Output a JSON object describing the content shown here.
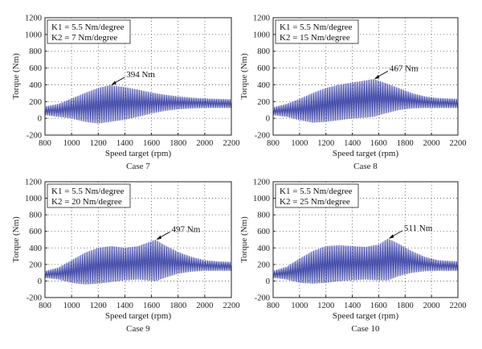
{
  "chart_data": [
    {
      "type": "line",
      "case_label": "Case 7",
      "xlabel": "Speed target (rpm)",
      "ylabel": "Torque (Nm)",
      "xlim": [
        800,
        2200
      ],
      "ylim": [
        -200,
        1200
      ],
      "x_ticks": [
        800,
        1000,
        1200,
        1400,
        1600,
        1800,
        2000,
        2200
      ],
      "y_ticks": [
        -200,
        0,
        200,
        400,
        600,
        800,
        1000,
        1200
      ],
      "grid": true,
      "legend_box": [
        "K1 = 5.5 Nm/degree",
        "K2 = 7 Nm/degree"
      ],
      "legend_position": "top-left",
      "peak": {
        "x": 1290,
        "y": 394,
        "label": "394 Nm"
      },
      "series": [
        {
          "color": "#3c45a8",
          "envelope": {
            "x": [
              800,
              900,
              1000,
              1100,
              1200,
              1290,
              1400,
              1500,
              1600,
              1700,
              1800,
              1900,
              2000,
              2100,
              2200
            ],
            "upper": [
              140,
              170,
              235,
              300,
              360,
              394,
              370,
              340,
              305,
              280,
              260,
              245,
              235,
              230,
              225
            ],
            "lower": [
              40,
              20,
              0,
              -40,
              -60,
              -40,
              -15,
              20,
              60,
              90,
              110,
              120,
              125,
              125,
              125
            ]
          }
        }
      ]
    },
    {
      "type": "line",
      "case_label": "Case 8",
      "xlabel": "Speed target (rpm)",
      "ylabel": "Torque (Nm)",
      "xlim": [
        800,
        2200
      ],
      "ylim": [
        -200,
        1200
      ],
      "x_ticks": [
        800,
        1000,
        1200,
        1400,
        1600,
        1800,
        2000,
        2200
      ],
      "y_ticks": [
        -200,
        0,
        200,
        400,
        600,
        800,
        1000,
        1200
      ],
      "grid": true,
      "legend_box": [
        "K1 = 5.5 Nm/degree",
        "K2 = 15 Nm/degree"
      ],
      "legend_position": "top-left",
      "peak": {
        "x": 1560,
        "y": 467,
        "label": "467 Nm"
      },
      "series": [
        {
          "color": "#3c45a8",
          "envelope": {
            "x": [
              800,
              900,
              1000,
              1100,
              1200,
              1300,
              1400,
              1500,
              1560,
              1650,
              1750,
              1850,
              1950,
              2050,
              2200
            ],
            "upper": [
              130,
              170,
              230,
              300,
              360,
              400,
              425,
              450,
              467,
              420,
              360,
              300,
              260,
              240,
              230
            ],
            "lower": [
              40,
              20,
              -20,
              -50,
              -40,
              -20,
              0,
              10,
              20,
              60,
              100,
              120,
              125,
              125,
              125
            ]
          }
        }
      ]
    },
    {
      "type": "line",
      "case_label": "Case 9",
      "xlabel": "Speed target (rpm)",
      "ylabel": "Torque (Nm)",
      "xlim": [
        800,
        2200
      ],
      "ylim": [
        -200,
        1200
      ],
      "x_ticks": [
        800,
        1000,
        1200,
        1400,
        1600,
        1800,
        2000,
        2200
      ],
      "y_ticks": [
        -200,
        0,
        200,
        400,
        600,
        800,
        1000,
        1200
      ],
      "grid": true,
      "legend_box": [
        "K1 = 5.5 Nm/degree",
        "K2 = 20 Nm/degree"
      ],
      "legend_position": "top-left",
      "peak": {
        "x": 1630,
        "y": 497,
        "label": "497 Nm"
      },
      "series": [
        {
          "color": "#3c45a8",
          "envelope": {
            "x": [
              800,
              900,
              1000,
              1100,
              1200,
              1300,
              1400,
              1500,
              1630,
              1700,
              1800,
              1900,
              2000,
              2100,
              2200
            ],
            "upper": [
              120,
              160,
              250,
              340,
              400,
              420,
              400,
              420,
              497,
              430,
              350,
              290,
              250,
              235,
              230
            ],
            "lower": [
              40,
              20,
              -20,
              -40,
              -30,
              -10,
              10,
              20,
              0,
              40,
              90,
              115,
              125,
              125,
              125
            ]
          }
        }
      ]
    },
    {
      "type": "line",
      "case_label": "Case 10",
      "xlabel": "Speed target (rpm)",
      "ylabel": "Torque (Nm)",
      "xlim": [
        800,
        2200
      ],
      "ylim": [
        -200,
        1200
      ],
      "x_ticks": [
        800,
        1000,
        1200,
        1400,
        1600,
        1800,
        2000,
        2200
      ],
      "y_ticks": [
        -200,
        0,
        200,
        400,
        600,
        800,
        1000,
        1200
      ],
      "grid": true,
      "legend_box": [
        "K1 = 5.5 Nm/degree",
        "K2 = 25 Nm/degree"
      ],
      "legend_position": "top-left",
      "peak": {
        "x": 1670,
        "y": 511,
        "label": "511 Nm"
      },
      "series": [
        {
          "color": "#3c45a8",
          "envelope": {
            "x": [
              800,
              900,
              1000,
              1100,
              1200,
              1300,
              1400,
              1500,
              1600,
              1670,
              1750,
              1850,
              1950,
              2050,
              2200
            ],
            "upper": [
              120,
              170,
              270,
              360,
              420,
              430,
              420,
              410,
              440,
              511,
              450,
              360,
              290,
              250,
              235
            ],
            "lower": [
              40,
              20,
              -20,
              -30,
              -20,
              0,
              10,
              20,
              10,
              10,
              60,
              100,
              120,
              125,
              125
            ]
          }
        }
      ]
    }
  ]
}
